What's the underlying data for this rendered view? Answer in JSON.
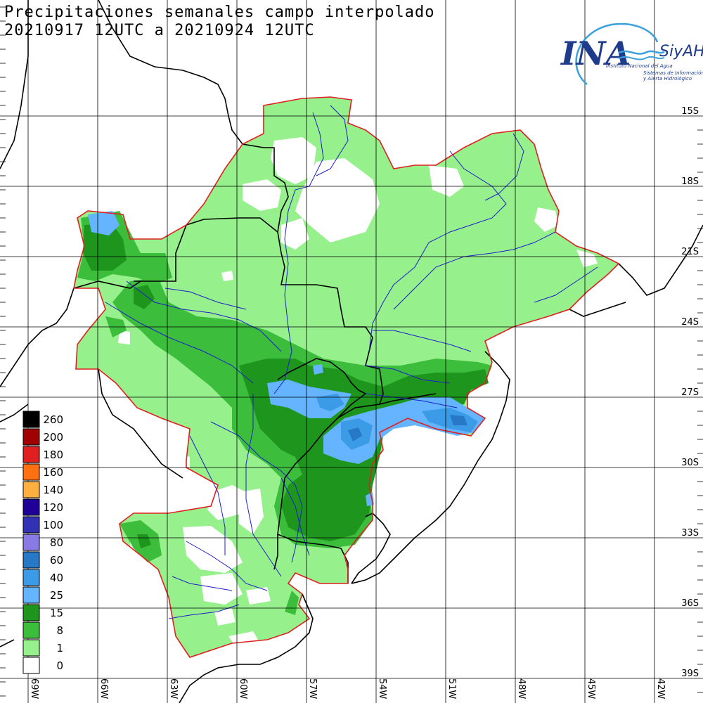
{
  "title": {
    "line1": "Precipitaciones semanales campo interpolado",
    "line2": "20210917 12UTC a 20210924 12UTC"
  },
  "logo": {
    "brand": "INA",
    "product": "SiyAH",
    "org_name": "Instituto Nacional del Agua",
    "subtitle_line1": "Sistemas de Información",
    "subtitle_line2": "y Alerta Hidrológico"
  },
  "lat_labels": [
    "15S",
    "18S",
    "21S",
    "24S",
    "27S",
    "30S",
    "33S",
    "36S",
    "39S"
  ],
  "lon_labels": [
    "69W",
    "66W",
    "63W",
    "60W",
    "57W",
    "54W",
    "51W",
    "48W",
    "45W",
    "42W"
  ],
  "legend": {
    "items": [
      {
        "label": "260",
        "color": "#000000"
      },
      {
        "label": "200",
        "color": "#a00000"
      },
      {
        "label": "180",
        "color": "#e02020"
      },
      {
        "label": "160",
        "color": "#ff7010"
      },
      {
        "label": "140",
        "color": "#ffb040"
      },
      {
        "label": "120",
        "color": "#1e0096"
      },
      {
        "label": "100",
        "color": "#3232b4"
      },
      {
        "label": "80",
        "color": "#8a7ae6"
      },
      {
        "label": "60",
        "color": "#2878c8"
      },
      {
        "label": "40",
        "color": "#3c9be6"
      },
      {
        "label": "25",
        "color": "#64b4ff"
      },
      {
        "label": "15",
        "color": "#1e961e"
      },
      {
        "label": "8",
        "color": "#3cbe3c"
      },
      {
        "label": "1",
        "color": "#96f08c"
      },
      {
        "label": "0",
        "color": "#ffffff"
      }
    ]
  },
  "colors": {
    "basin_outline": "#e02020",
    "country_border": "#000000",
    "rivers": "#1e1ecc",
    "grid": "#000000"
  }
}
